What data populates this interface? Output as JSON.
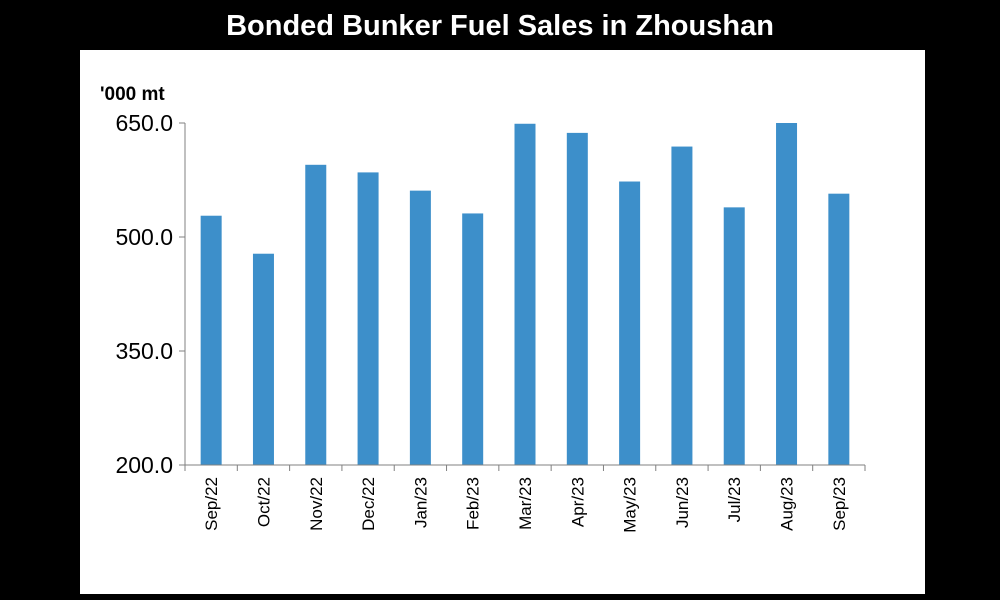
{
  "title": "Bonded Bunker Fuel Sales in Zhoushan",
  "chart_data": {
    "type": "bar",
    "title": "Bonded Bunker Fuel Sales in Zhoushan",
    "ylabel": "'000 mt",
    "xlabel": "",
    "categories": [
      "Sep/22",
      "Oct/22",
      "Nov/22",
      "Dec/22",
      "Jan/23",
      "Feb/23",
      "Mar/23",
      "Apr/23",
      "May/23",
      "Jun/23",
      "Jul/23",
      "Aug/23",
      "Sep/23"
    ],
    "values": [
      528,
      478,
      595,
      585,
      561,
      531,
      649,
      637,
      573,
      619,
      539,
      650,
      557
    ],
    "ylim": [
      200,
      650
    ],
    "yticks": [
      "200.0",
      "350.0",
      "500.0",
      "650.0"
    ],
    "bar_color": "#3d8fca",
    "grid": false,
    "legend": "none"
  }
}
